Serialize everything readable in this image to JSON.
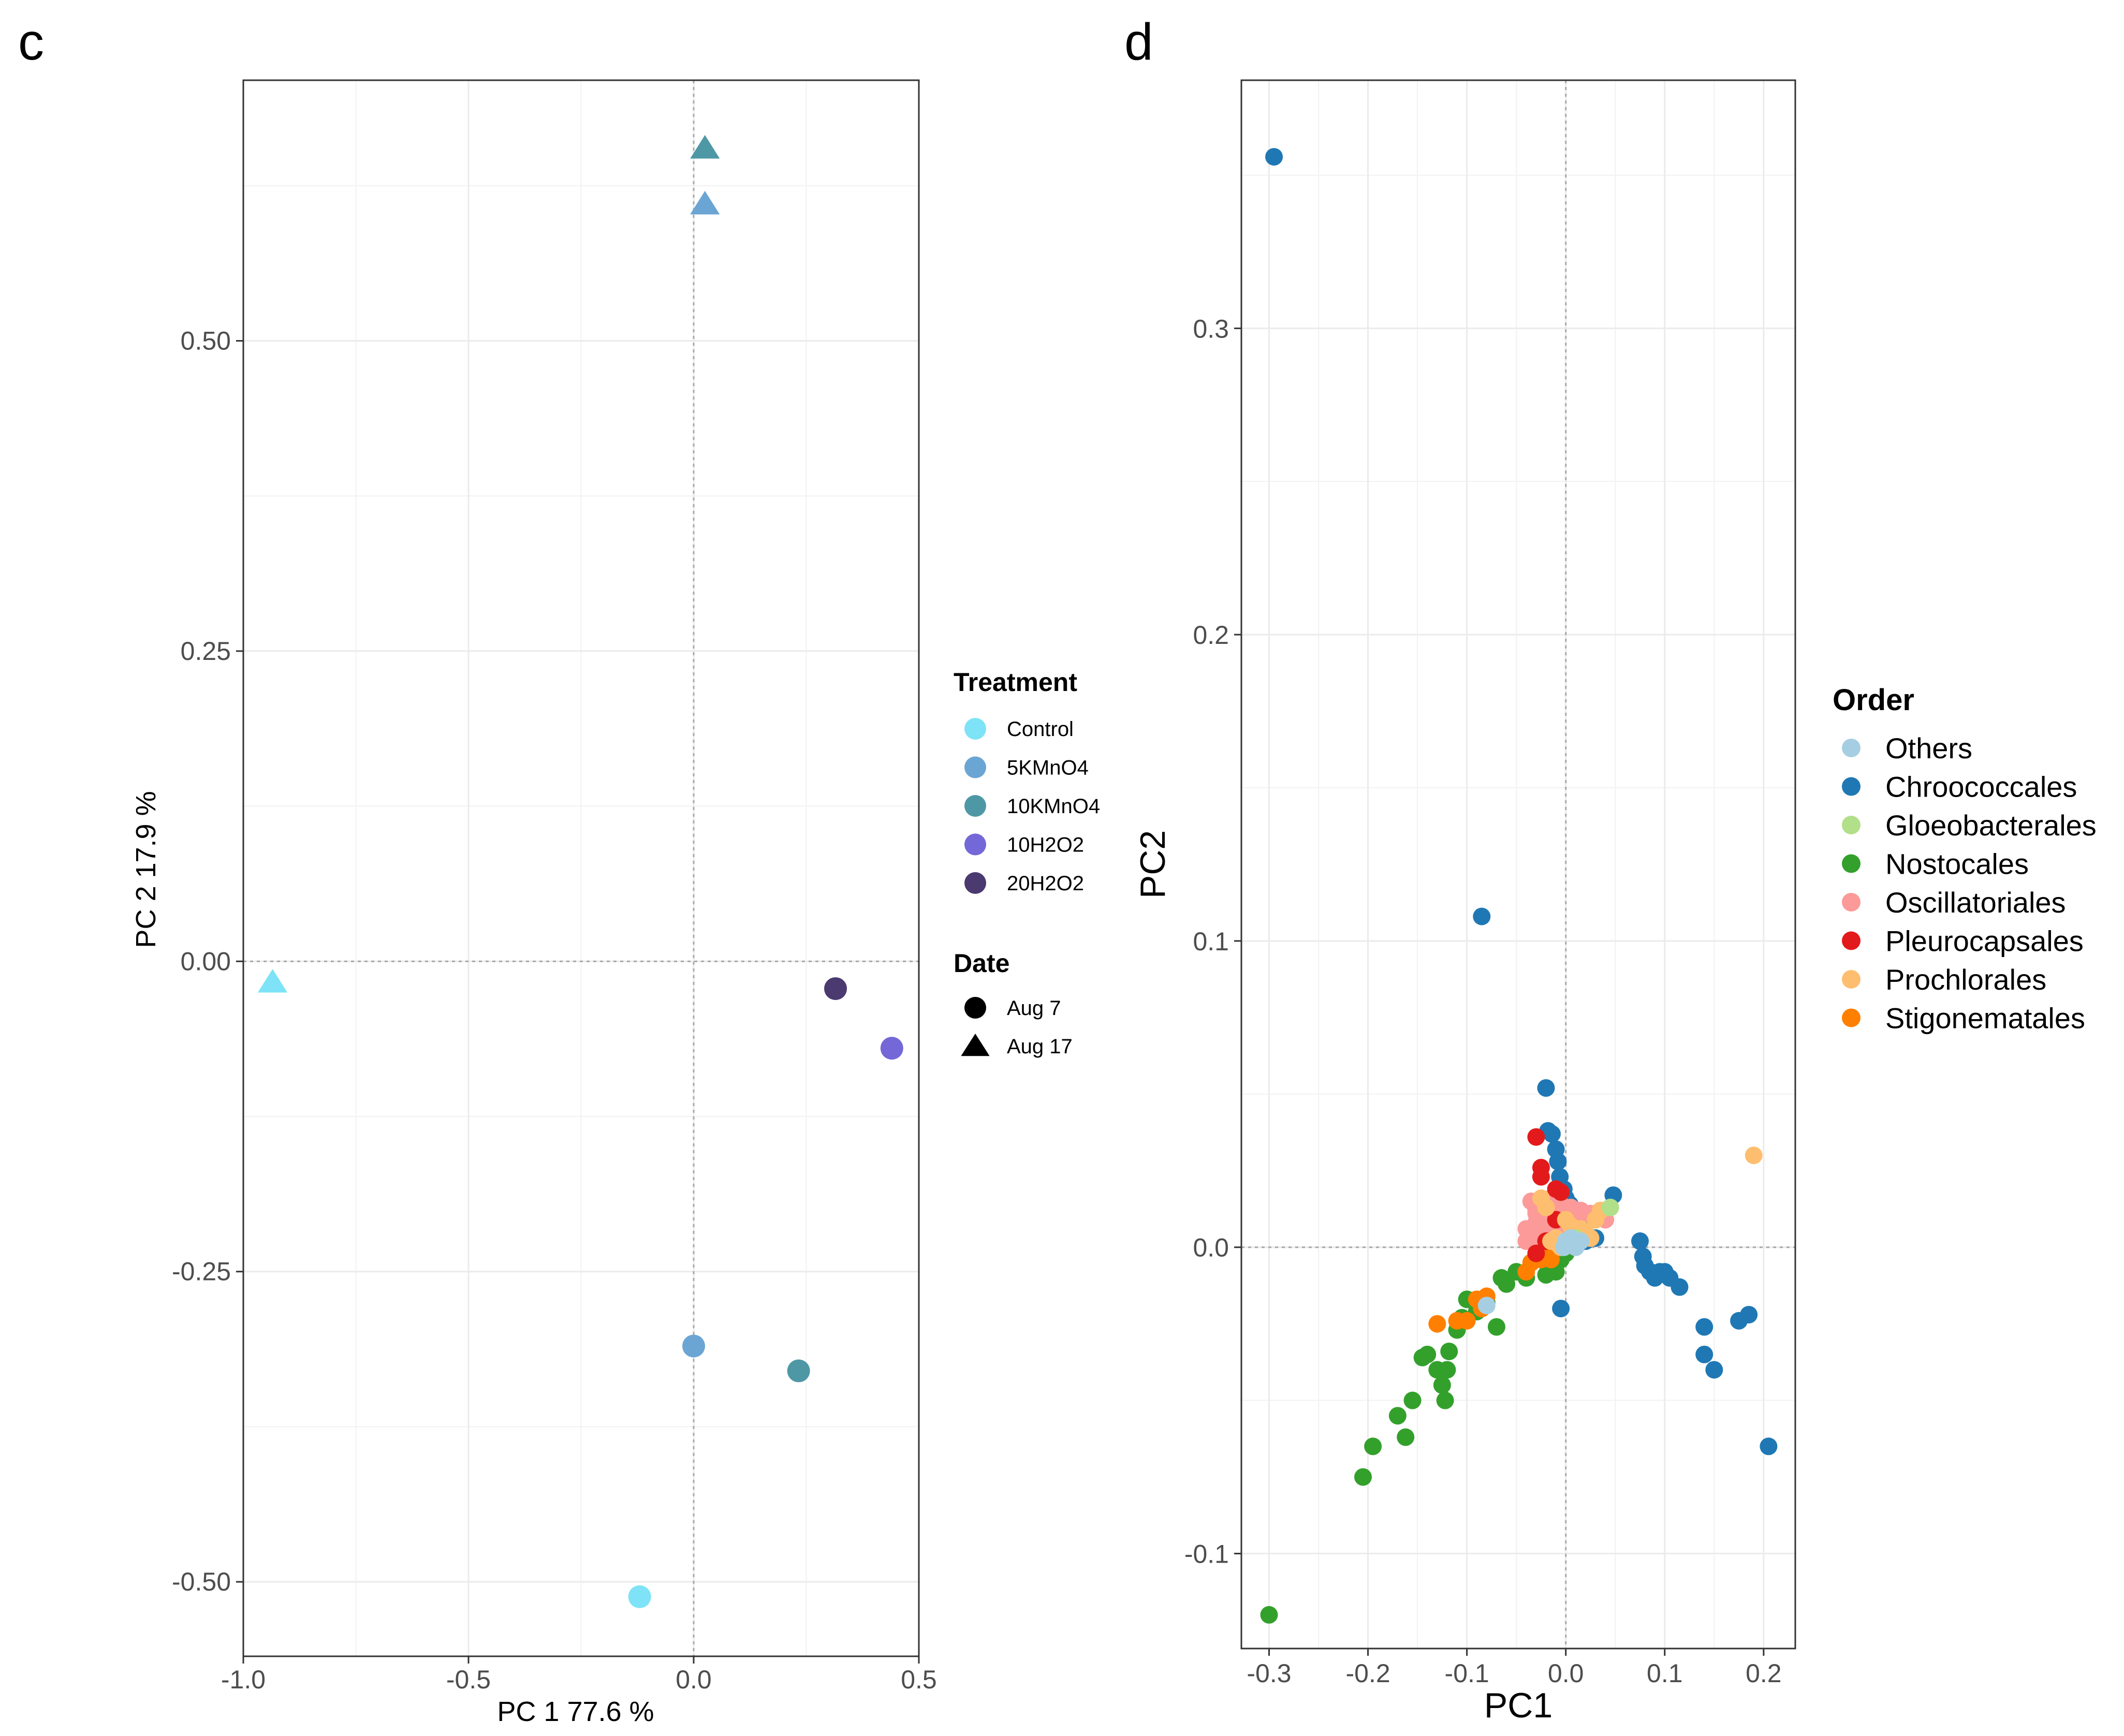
{
  "panels": {
    "c": {
      "letter": "c"
    },
    "d": {
      "letter": "d"
    }
  },
  "chart_data": [
    {
      "panel": "c",
      "type": "scatter",
      "xlabel": "PC 1  77.6 %",
      "ylabel": "PC 2  17.9 %",
      "xlim": [
        -1.0,
        0.5
      ],
      "ylim": [
        -0.56,
        0.71
      ],
      "xticks": [
        -1.0,
        -0.5,
        0.0,
        0.5
      ],
      "xtick_labels": [
        "-1.0",
        "-0.5",
        "0.0",
        "0.5"
      ],
      "yticks": [
        -0.5,
        -0.25,
        0.0,
        0.25,
        0.5
      ],
      "ytick_labels": [
        "-0.50",
        "-0.25",
        "0.00",
        "0.25",
        "0.50"
      ],
      "grid": true,
      "zero_lines": true,
      "legend_position": "right",
      "legends": [
        {
          "title": "Treatment",
          "entries": [
            {
              "label": "Control",
              "color": "#7ee3f7"
            },
            {
              "label": "5KMnO4",
              "color": "#6ba5d4"
            },
            {
              "label": "10KMnO4",
              "color": "#4e98a6"
            },
            {
              "label": "10H2O2",
              "color": "#7467d8"
            },
            {
              "label": "20H2O2",
              "color": "#4a3a70"
            }
          ]
        },
        {
          "title": "Date",
          "entries": [
            {
              "label": "Aug 7",
              "shape": "circle"
            },
            {
              "label": "Aug 17",
              "shape": "triangle"
            }
          ]
        }
      ],
      "points": [
        {
          "x": 0.025,
          "y": 0.655,
          "treatment": "10KMnO4",
          "date": "Aug 17"
        },
        {
          "x": 0.025,
          "y": 0.61,
          "treatment": "5KMnO4",
          "date": "Aug 17"
        },
        {
          "x": -0.935,
          "y": -0.017,
          "treatment": "Control",
          "date": "Aug 17"
        },
        {
          "x": 0.315,
          "y": -0.022,
          "treatment": "20H2O2",
          "date": "Aug 7"
        },
        {
          "x": 0.44,
          "y": -0.07,
          "treatment": "10H2O2",
          "date": "Aug 7"
        },
        {
          "x": 0.0,
          "y": -0.31,
          "treatment": "5KMnO4",
          "date": "Aug 7"
        },
        {
          "x": 0.233,
          "y": -0.33,
          "treatment": "10KMnO4",
          "date": "Aug 7"
        },
        {
          "x": -0.12,
          "y": -0.512,
          "treatment": "Control",
          "date": "Aug 7"
        }
      ]
    },
    {
      "panel": "d",
      "type": "scatter",
      "xlabel": "PC1",
      "ylabel": "PC2",
      "xlim": [
        -0.328,
        0.232
      ],
      "ylim": [
        -0.131,
        0.381
      ],
      "xticks": [
        -0.3,
        -0.2,
        -0.1,
        0.0,
        0.1,
        0.2
      ],
      "xtick_labels": [
        "-0.3",
        "-0.2",
        "-0.1",
        "0.0",
        "0.1",
        "0.2"
      ],
      "yticks": [
        -0.1,
        0.0,
        0.1,
        0.2,
        0.3
      ],
      "ytick_labels": [
        "-0.1",
        "0.0",
        "0.1",
        "0.2",
        "0.3"
      ],
      "grid": true,
      "zero_lines": true,
      "legend_position": "right",
      "legend": {
        "title": "Order",
        "entries": [
          {
            "label": "Others",
            "color": "#a6cee3"
          },
          {
            "label": "Chroococcales",
            "color": "#1f78b4"
          },
          {
            "label": "Gloeobacterales",
            "color": "#b2df8a"
          },
          {
            "label": "Nostocales",
            "color": "#33a02c"
          },
          {
            "label": "Oscillatoriales",
            "color": "#fb9a99"
          },
          {
            "label": "Pleurocapsales",
            "color": "#e31a1c"
          },
          {
            "label": "Prochlorales",
            "color": "#fdbf6f"
          },
          {
            "label": "Stigonematales",
            "color": "#ff7f00"
          }
        ]
      },
      "series": [
        {
          "name": "Chroococcales",
          "points": [
            [
              -0.295,
              0.356
            ],
            [
              -0.085,
              0.108
            ],
            [
              -0.02,
              0.052
            ],
            [
              -0.018,
              0.038
            ],
            [
              -0.014,
              0.037
            ],
            [
              -0.01,
              0.032
            ],
            [
              -0.008,
              0.028
            ],
            [
              -0.006,
              0.023
            ],
            [
              -0.002,
              0.019
            ],
            [
              0.0,
              0.016
            ],
            [
              0.004,
              0.014
            ],
            [
              0.048,
              0.017
            ],
            [
              0.075,
              0.002
            ],
            [
              0.078,
              -0.003
            ],
            [
              0.08,
              -0.006
            ],
            [
              0.085,
              -0.008
            ],
            [
              0.09,
              -0.01
            ],
            [
              0.095,
              -0.008
            ],
            [
              0.1,
              -0.008
            ],
            [
              0.105,
              -0.01
            ],
            [
              0.115,
              -0.013
            ],
            [
              0.14,
              -0.026
            ],
            [
              0.14,
              -0.035
            ],
            [
              0.15,
              -0.04
            ],
            [
              0.175,
              -0.024
            ],
            [
              0.185,
              -0.022
            ],
            [
              0.205,
              -0.065
            ],
            [
              -0.005,
              -0.02
            ],
            [
              0.02,
              0.002
            ],
            [
              0.03,
              0.003
            ],
            [
              0.02,
              0.008
            ],
            [
              0.01,
              0.005
            ]
          ]
        },
        {
          "name": "Nostocales",
          "points": [
            [
              -0.3,
              -0.12
            ],
            [
              -0.205,
              -0.075
            ],
            [
              -0.195,
              -0.065
            ],
            [
              -0.17,
              -0.055
            ],
            [
              -0.162,
              -0.062
            ],
            [
              -0.155,
              -0.05
            ],
            [
              -0.145,
              -0.036
            ],
            [
              -0.14,
              -0.035
            ],
            [
              -0.13,
              -0.04
            ],
            [
              -0.125,
              -0.045
            ],
            [
              -0.122,
              -0.05
            ],
            [
              -0.12,
              -0.04
            ],
            [
              -0.118,
              -0.034
            ],
            [
              -0.11,
              -0.027
            ],
            [
              -0.105,
              -0.023
            ],
            [
              -0.1,
              -0.017
            ],
            [
              -0.09,
              -0.021
            ],
            [
              -0.08,
              -0.018
            ],
            [
              -0.07,
              -0.026
            ],
            [
              -0.065,
              -0.01
            ],
            [
              -0.06,
              -0.012
            ],
            [
              -0.05,
              -0.008
            ],
            [
              -0.04,
              -0.01
            ],
            [
              -0.035,
              -0.005
            ],
            [
              -0.02,
              -0.009
            ],
            [
              -0.01,
              -0.008
            ],
            [
              -0.005,
              -0.004
            ],
            [
              0.0,
              -0.002
            ]
          ]
        },
        {
          "name": "Stigonematales",
          "points": [
            [
              -0.13,
              -0.025
            ],
            [
              -0.11,
              -0.024
            ],
            [
              -0.1,
              -0.024
            ],
            [
              -0.09,
              -0.017
            ],
            [
              -0.085,
              -0.02
            ],
            [
              -0.08,
              -0.016
            ],
            [
              -0.04,
              -0.008
            ],
            [
              -0.035,
              -0.005
            ],
            [
              -0.025,
              -0.004
            ],
            [
              -0.02,
              -0.003
            ],
            [
              -0.015,
              -0.004
            ]
          ]
        },
        {
          "name": "Oscillatoriales",
          "points": [
            [
              -0.035,
              0.015
            ],
            [
              -0.03,
              0.012
            ],
            [
              -0.025,
              0.015
            ],
            [
              -0.02,
              0.013
            ],
            [
              -0.015,
              0.016
            ],
            [
              -0.01,
              0.012
            ],
            [
              -0.005,
              0.014
            ],
            [
              0.0,
              0.012
            ],
            [
              0.005,
              0.013
            ],
            [
              0.01,
              0.011
            ],
            [
              0.015,
              0.012
            ],
            [
              0.02,
              0.011
            ],
            [
              -0.04,
              0.006
            ],
            [
              -0.035,
              0.004
            ],
            [
              -0.03,
              0.008
            ],
            [
              -0.025,
              0.005
            ],
            [
              -0.02,
              0.009
            ],
            [
              -0.015,
              0.006
            ],
            [
              -0.01,
              0.004
            ],
            [
              -0.04,
              0.002
            ],
            [
              -0.025,
              0.002
            ],
            [
              -0.03,
              0.011
            ],
            [
              0.025,
              0.011
            ],
            [
              0.04,
              0.009
            ],
            [
              0.035,
              0.012
            ],
            [
              0.0,
              0.007
            ],
            [
              0.01,
              0.006
            ],
            [
              -0.005,
              0.003
            ]
          ]
        },
        {
          "name": "Pleurocapsales",
          "points": [
            [
              -0.03,
              0.036
            ],
            [
              -0.025,
              0.026
            ],
            [
              -0.025,
              0.023
            ],
            [
              -0.01,
              0.019
            ],
            [
              -0.005,
              0.018
            ],
            [
              -0.01,
              0.009
            ],
            [
              -0.03,
              -0.002
            ],
            [
              -0.02,
              0.002
            ],
            [
              0.0,
              0.002
            ]
          ]
        },
        {
          "name": "Prochlorales",
          "points": [
            [
              0.19,
              0.03
            ],
            [
              -0.025,
              0.016
            ],
            [
              -0.02,
              0.013
            ],
            [
              -0.015,
              0.002
            ],
            [
              -0.01,
              0.003
            ],
            [
              0.0,
              0.009
            ],
            [
              0.005,
              0.007
            ],
            [
              0.015,
              0.006
            ],
            [
              0.02,
              0.005
            ],
            [
              0.025,
              0.003
            ],
            [
              0.035,
              0.012
            ],
            [
              0.03,
              0.009
            ],
            [
              -0.005,
              0.0
            ]
          ]
        },
        {
          "name": "Gloeobacterales",
          "points": [
            [
              0.045,
              0.013
            ],
            [
              0.01,
              0.003
            ]
          ]
        },
        {
          "name": "Others",
          "points": [
            [
              -0.08,
              -0.019
            ],
            [
              0.0,
              0.002
            ],
            [
              0.005,
              0.003
            ],
            [
              0.01,
              0.0
            ],
            [
              0.015,
              0.002
            ],
            [
              -0.002,
              0.0
            ]
          ]
        }
      ]
    }
  ]
}
